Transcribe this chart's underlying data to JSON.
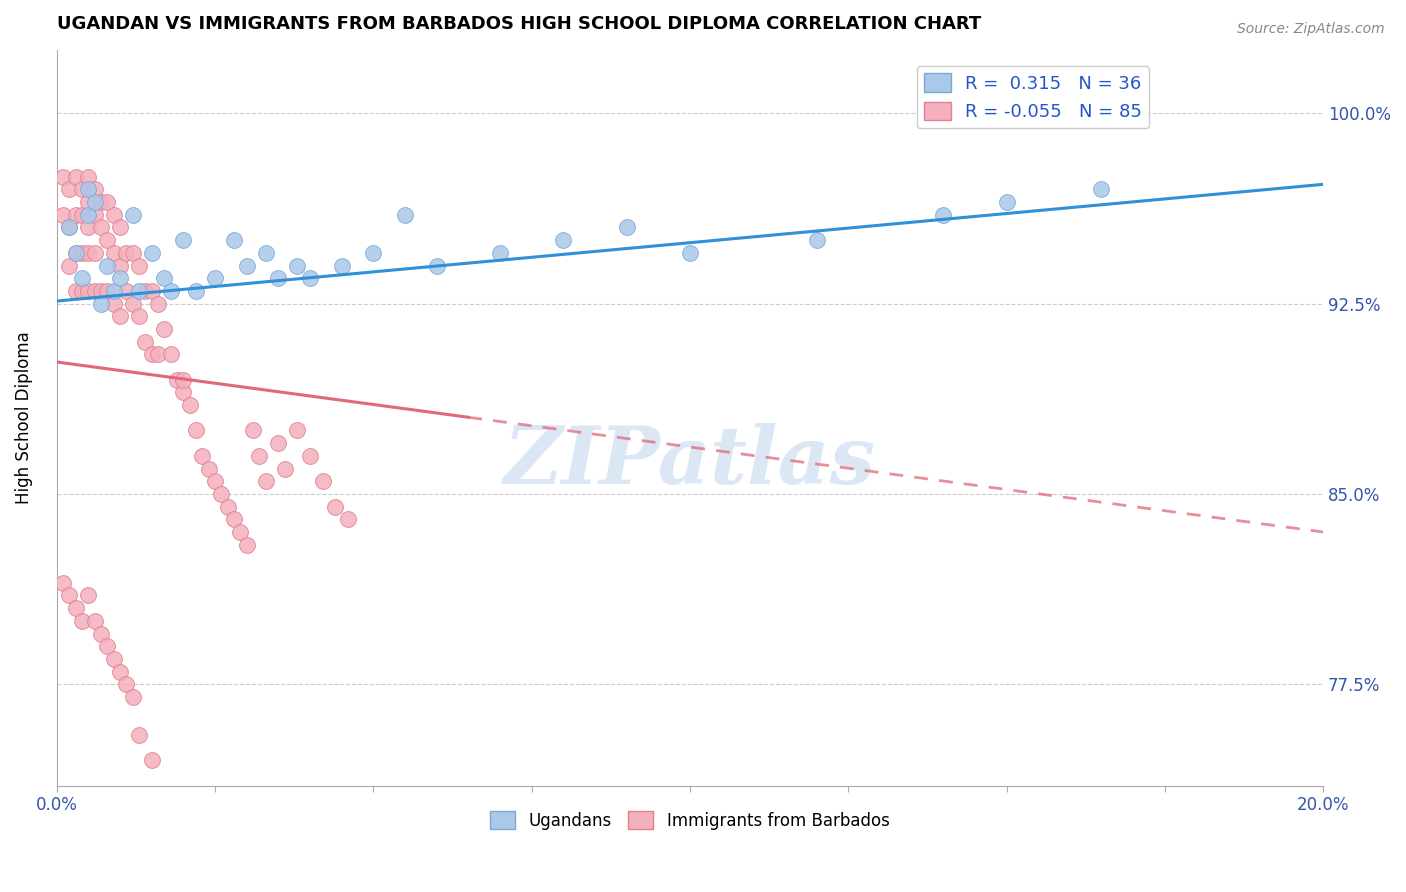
{
  "title": "UGANDAN VS IMMIGRANTS FROM BARBADOS HIGH SCHOOL DIPLOMA CORRELATION CHART",
  "source": "Source: ZipAtlas.com",
  "ylabel": "High School Diploma",
  "xlim": [
    0.0,
    0.2
  ],
  "ylim": [
    0.735,
    1.025
  ],
  "yticks": [
    0.775,
    0.85,
    0.925,
    1.0
  ],
  "ytick_labels": [
    "77.5%",
    "85.0%",
    "92.5%",
    "100.0%"
  ],
  "xticks": [
    0.0,
    0.025,
    0.05,
    0.075,
    0.1,
    0.125,
    0.15,
    0.175,
    0.2
  ],
  "series1_color": "#aac8e8",
  "series1_edge": "#78a8d8",
  "series2_color": "#f4b0bc",
  "series2_edge": "#e08090",
  "line1_color": "#3090d8",
  "line2_color": "#e06878",
  "line2_color_dashed": "#e8a0a8",
  "R1": 0.315,
  "N1": 36,
  "R2": -0.055,
  "N2": 85,
  "legend_label1": "Ugandans",
  "legend_label2": "Immigrants from Barbados",
  "watermark": "ZIPatlas",
  "ugandan_x": [
    0.002,
    0.003,
    0.004,
    0.005,
    0.005,
    0.006,
    0.007,
    0.008,
    0.009,
    0.01,
    0.012,
    0.013,
    0.015,
    0.017,
    0.018,
    0.02,
    0.022,
    0.025,
    0.028,
    0.03,
    0.033,
    0.035,
    0.038,
    0.04,
    0.045,
    0.05,
    0.055,
    0.06,
    0.07,
    0.08,
    0.09,
    0.1,
    0.12,
    0.14,
    0.15,
    0.165
  ],
  "ugandan_y": [
    0.955,
    0.945,
    0.935,
    0.97,
    0.96,
    0.965,
    0.925,
    0.94,
    0.93,
    0.935,
    0.96,
    0.93,
    0.945,
    0.935,
    0.93,
    0.95,
    0.93,
    0.935,
    0.95,
    0.94,
    0.945,
    0.935,
    0.94,
    0.935,
    0.94,
    0.945,
    0.96,
    0.94,
    0.945,
    0.95,
    0.955,
    0.945,
    0.95,
    0.96,
    0.965,
    0.97
  ],
  "barbados_x": [
    0.001,
    0.001,
    0.002,
    0.002,
    0.002,
    0.003,
    0.003,
    0.003,
    0.003,
    0.004,
    0.004,
    0.004,
    0.004,
    0.005,
    0.005,
    0.005,
    0.005,
    0.005,
    0.006,
    0.006,
    0.006,
    0.006,
    0.007,
    0.007,
    0.007,
    0.008,
    0.008,
    0.008,
    0.009,
    0.009,
    0.009,
    0.01,
    0.01,
    0.01,
    0.011,
    0.011,
    0.012,
    0.012,
    0.013,
    0.013,
    0.014,
    0.014,
    0.015,
    0.015,
    0.016,
    0.016,
    0.017,
    0.018,
    0.019,
    0.02,
    0.021,
    0.022,
    0.023,
    0.024,
    0.025,
    0.026,
    0.027,
    0.028,
    0.029,
    0.03,
    0.031,
    0.032,
    0.033,
    0.035,
    0.036,
    0.038,
    0.04,
    0.042,
    0.044,
    0.046,
    0.001,
    0.002,
    0.003,
    0.004,
    0.005,
    0.006,
    0.007,
    0.008,
    0.009,
    0.01,
    0.011,
    0.012,
    0.013,
    0.015,
    0.02
  ],
  "barbados_y": [
    0.975,
    0.96,
    0.97,
    0.955,
    0.94,
    0.975,
    0.96,
    0.945,
    0.93,
    0.97,
    0.96,
    0.945,
    0.93,
    0.975,
    0.965,
    0.955,
    0.945,
    0.93,
    0.97,
    0.96,
    0.945,
    0.93,
    0.965,
    0.955,
    0.93,
    0.965,
    0.95,
    0.93,
    0.96,
    0.945,
    0.925,
    0.955,
    0.94,
    0.92,
    0.945,
    0.93,
    0.945,
    0.925,
    0.94,
    0.92,
    0.93,
    0.91,
    0.93,
    0.905,
    0.925,
    0.905,
    0.915,
    0.905,
    0.895,
    0.89,
    0.885,
    0.875,
    0.865,
    0.86,
    0.855,
    0.85,
    0.845,
    0.84,
    0.835,
    0.83,
    0.875,
    0.865,
    0.855,
    0.87,
    0.86,
    0.875,
    0.865,
    0.855,
    0.845,
    0.84,
    0.815,
    0.81,
    0.805,
    0.8,
    0.81,
    0.8,
    0.795,
    0.79,
    0.785,
    0.78,
    0.775,
    0.77,
    0.755,
    0.745,
    0.895
  ],
  "line1_x0": 0.0,
  "line1_y0": 0.926,
  "line1_x1": 0.2,
  "line1_y1": 0.972,
  "line2_x0": 0.0,
  "line2_y0": 0.902,
  "line2_x1": 0.2,
  "line2_y1": 0.835,
  "line2_solid_end": 0.065,
  "line2_dash_start": 0.065
}
